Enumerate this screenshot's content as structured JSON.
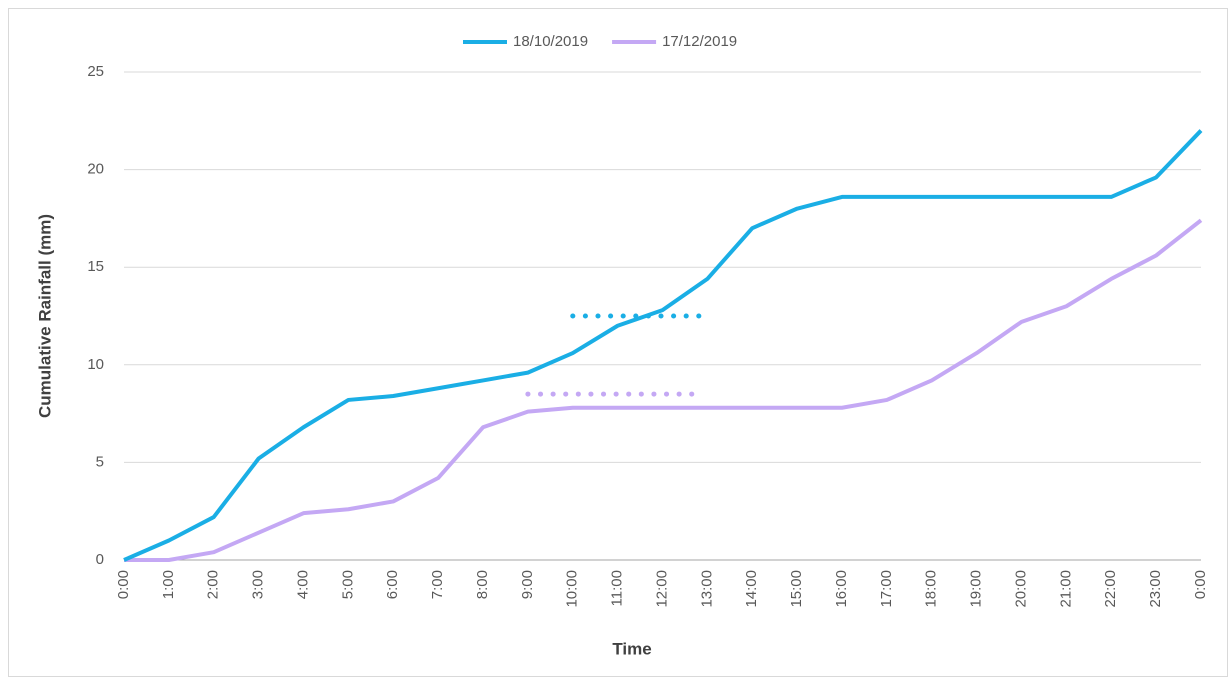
{
  "chart_data": {
    "type": "line",
    "x_label": "Time",
    "y_label": "Cumulative Rainfall (mm)",
    "categories": [
      "0:00",
      "1:00",
      "2:00",
      "3:00",
      "4:00",
      "5:00",
      "6:00",
      "7:00",
      "8:00",
      "9:00",
      "10:00",
      "11:00",
      "12:00",
      "13:00",
      "14:00",
      "15:00",
      "16:00",
      "17:00",
      "18:00",
      "19:00",
      "20:00",
      "21:00",
      "22:00",
      "23:00",
      "0:00"
    ],
    "series": [
      {
        "name": "18/10/2019",
        "color": "#1aaee5",
        "values": [
          0,
          1.0,
          2.2,
          5.2,
          6.8,
          8.2,
          8.4,
          8.8,
          9.2,
          9.6,
          10.6,
          12.0,
          12.8,
          14.4,
          17.0,
          18.0,
          18.6,
          18.6,
          18.6,
          18.6,
          18.6,
          18.6,
          18.6,
          19.6,
          22.0
        ]
      },
      {
        "name": "17/12/2019",
        "color": "#c4a8f4",
        "values": [
          0,
          0,
          0.4,
          1.4,
          2.4,
          2.6,
          3.0,
          4.2,
          6.8,
          7.6,
          7.8,
          7.8,
          7.8,
          7.8,
          7.8,
          7.8,
          7.8,
          8.2,
          9.2,
          10.6,
          12.2,
          13.0,
          14.4,
          15.6,
          17.4
        ]
      }
    ],
    "reference_lines": [
      {
        "color": "#1aaee5",
        "y": 12.5,
        "x": [
          10,
          13
        ]
      },
      {
        "color": "#c4a8f4",
        "y": 8.5,
        "x": [
          9,
          12.75
        ]
      }
    ],
    "ylim": [
      0,
      25
    ],
    "yticks": [
      0,
      5,
      10,
      15,
      20,
      25
    ],
    "grid": true,
    "legend": "top"
  }
}
